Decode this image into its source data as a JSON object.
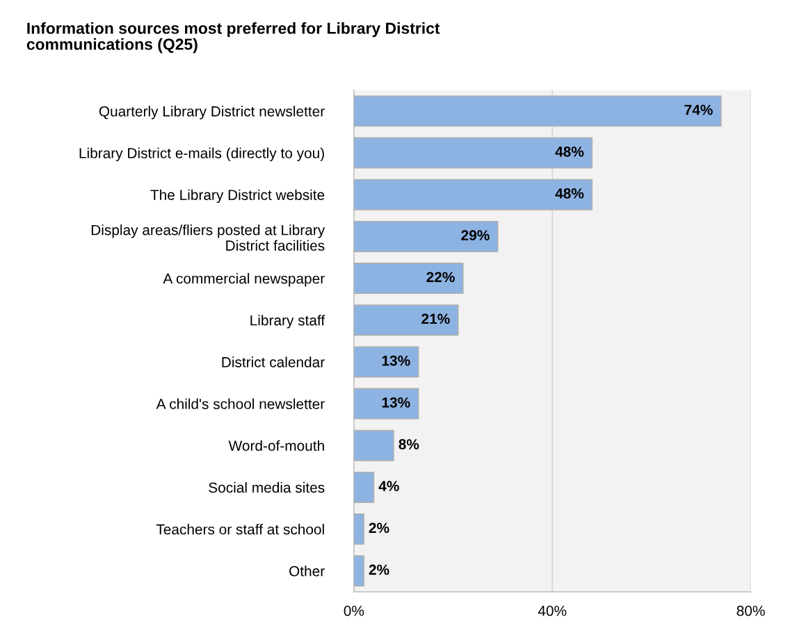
{
  "chart_data": {
    "type": "bar",
    "orientation": "horizontal",
    "title": "Information sources most preferred for Library District\ncommunications (Q25)",
    "categories": [
      "Quarterly Library District newsletter",
      "Library District e-mails (directly to you)",
      "The Library District website",
      "Display areas/fliers posted at Library\nDistrict facilities",
      "A commercial newspaper",
      "Library staff",
      "District calendar",
      "A child's school newsletter",
      "Word-of-mouth",
      "Social media sites",
      "Teachers or staff at school",
      "Other"
    ],
    "values": [
      74,
      48,
      48,
      29,
      22,
      21,
      13,
      13,
      8,
      4,
      2,
      2
    ],
    "value_labels": [
      "74%",
      "48%",
      "48%",
      "29%",
      "22%",
      "21%",
      "13%",
      "13%",
      "8%",
      "4%",
      "2%",
      "2%"
    ],
    "color": "#8db3e2",
    "xlim": [
      0,
      80
    ],
    "xticks": [
      {
        "value": 0,
        "label": "0%"
      },
      {
        "value": 40,
        "label": "40%"
      },
      {
        "value": 80,
        "label": "80%"
      }
    ],
    "grid": "x",
    "legend": false
  }
}
